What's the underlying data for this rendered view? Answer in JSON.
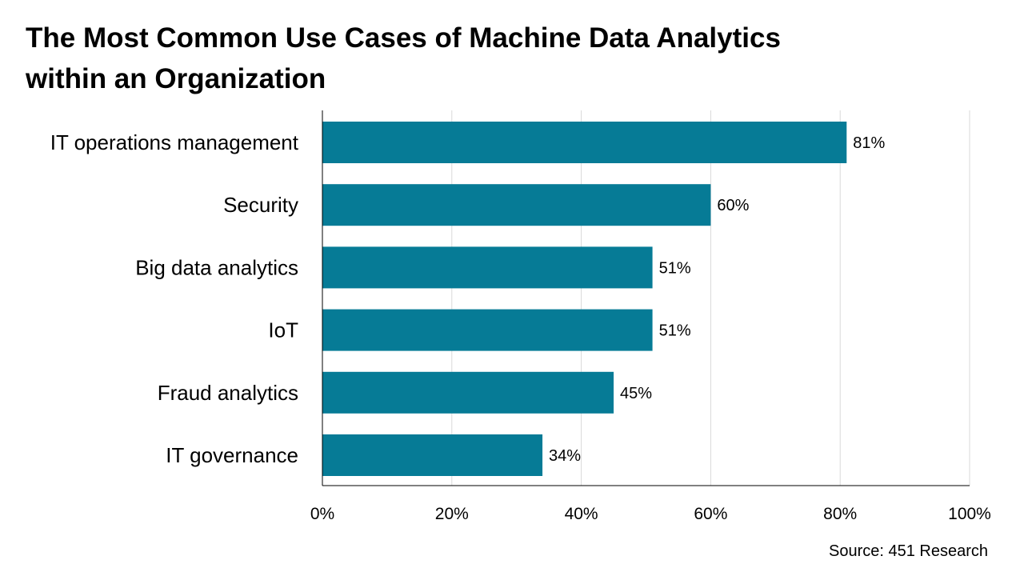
{
  "title_lines": [
    "The Most Common Use Cases of Machine Data Analytics",
    "within an Organization"
  ],
  "source": "Source: 451 Research",
  "colors": {
    "bar": "#067b96",
    "grid": "#d9d9d9",
    "axis": "#000000"
  },
  "chart_data": {
    "type": "bar",
    "orientation": "horizontal",
    "categories": [
      "IT operations management",
      "Security",
      "Big data analytics",
      "IoT",
      "Fraud analytics",
      "IT governance"
    ],
    "values": [
      81,
      60,
      51,
      51,
      45,
      34
    ],
    "data_labels": [
      "81%",
      "60%",
      "51%",
      "51%",
      "45%",
      "34%"
    ],
    "xlim": [
      0,
      100
    ],
    "x_ticks": [
      0,
      20,
      40,
      60,
      80,
      100
    ],
    "x_tick_labels": [
      "0%",
      "20%",
      "40%",
      "60%",
      "80%",
      "100%"
    ],
    "grid": true
  }
}
